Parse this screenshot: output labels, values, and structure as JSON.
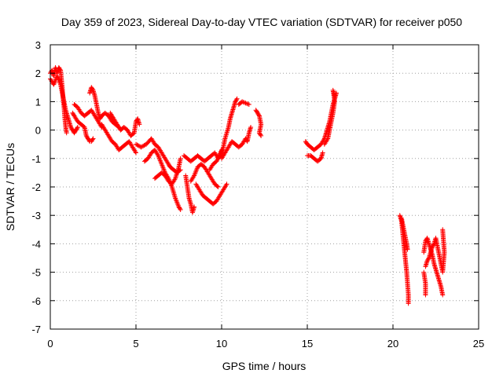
{
  "chart_data": {
    "type": "scatter",
    "title": "Day 359 of 2023, Sidereal Day-to-day VTEC variation (SDTVAR) for receiver p050",
    "xlabel": "GPS time / hours",
    "ylabel": "SDTVAR / TECUs",
    "xlim": [
      0,
      25
    ],
    "ylim": [
      -7,
      3
    ],
    "xticks": [
      "0",
      "5",
      "10",
      "15",
      "20",
      "25"
    ],
    "yticks": [
      "3",
      "2",
      "1",
      "0",
      "-1",
      "-2",
      "-3",
      "-4",
      "-5",
      "-6",
      "-7"
    ],
    "xtick_values": [
      0,
      5,
      10,
      15,
      20,
      25
    ],
    "ytick_values": [
      3,
      2,
      1,
      0,
      -1,
      -2,
      -3,
      -4,
      -5,
      -6,
      -7
    ],
    "grid": true,
    "marker": "plus",
    "color": "#ff0000",
    "series": [
      {
        "name": "SDTVAR",
        "segments": [
          [
            [
              0.0,
              2.0
            ],
            [
              0.1,
              2.1
            ],
            [
              0.2,
              1.9
            ],
            [
              0.3,
              2.2
            ],
            [
              0.4,
              2.0
            ],
            [
              0.5,
              2.2
            ],
            [
              0.6,
              2.1
            ],
            [
              0.65,
              1.8
            ],
            [
              0.7,
              1.5
            ],
            [
              0.75,
              1.1
            ],
            [
              0.8,
              0.8
            ],
            [
              0.85,
              0.4
            ],
            [
              0.9,
              0.1
            ],
            [
              0.95,
              -0.1
            ]
          ],
          [
            [
              0.0,
              1.8
            ],
            [
              0.2,
              1.6
            ],
            [
              0.4,
              1.9
            ],
            [
              0.6,
              1.6
            ],
            [
              0.7,
              1.3
            ],
            [
              0.8,
              1.0
            ],
            [
              0.9,
              0.7
            ],
            [
              1.0,
              0.5
            ],
            [
              1.1,
              0.3
            ],
            [
              1.2,
              0.1
            ],
            [
              1.3,
              0.0
            ],
            [
              1.4,
              -0.1
            ],
            [
              1.5,
              0.0
            ],
            [
              1.6,
              0.1
            ]
          ],
          [
            [
              1.3,
              0.6
            ],
            [
              1.4,
              0.5
            ],
            [
              1.6,
              0.3
            ],
            [
              1.8,
              0.2
            ],
            [
              2.0,
              0.1
            ],
            [
              2.1,
              -0.2
            ],
            [
              2.2,
              -0.3
            ],
            [
              2.3,
              -0.4
            ],
            [
              2.4,
              -0.4
            ],
            [
              2.5,
              -0.3
            ]
          ],
          [
            [
              1.4,
              0.9
            ],
            [
              1.6,
              0.8
            ],
            [
              1.8,
              0.6
            ],
            [
              2.0,
              0.5
            ],
            [
              2.2,
              0.6
            ],
            [
              2.4,
              0.7
            ],
            [
              2.6,
              0.5
            ],
            [
              2.8,
              0.3
            ],
            [
              3.0,
              0.1
            ]
          ],
          [
            [
              2.3,
              1.3
            ],
            [
              2.4,
              1.5
            ],
            [
              2.5,
              1.4
            ],
            [
              2.6,
              1.2
            ],
            [
              2.7,
              0.9
            ],
            [
              2.8,
              0.6
            ],
            [
              2.9,
              0.4
            ],
            [
              3.0,
              0.5
            ],
            [
              3.2,
              0.6
            ],
            [
              3.4,
              0.5
            ],
            [
              3.6,
              0.3
            ],
            [
              3.8,
              0.2
            ],
            [
              4.0,
              0.1
            ]
          ],
          [
            [
              3.0,
              0.2
            ],
            [
              3.2,
              0.0
            ],
            [
              3.4,
              -0.2
            ],
            [
              3.6,
              -0.4
            ],
            [
              3.8,
              -0.5
            ],
            [
              4.0,
              -0.7
            ],
            [
              4.2,
              -0.6
            ],
            [
              4.4,
              -0.5
            ],
            [
              4.6,
              -0.4
            ],
            [
              4.8,
              -0.6
            ],
            [
              5.0,
              -0.8
            ]
          ],
          [
            [
              3.5,
              0.6
            ],
            [
              3.7,
              0.4
            ],
            [
              3.9,
              0.2
            ],
            [
              4.1,
              0.0
            ],
            [
              4.3,
              0.1
            ],
            [
              4.5,
              0.0
            ],
            [
              4.7,
              -0.2
            ],
            [
              4.9,
              -0.1
            ],
            [
              5.0,
              0.3
            ],
            [
              5.1,
              0.4
            ],
            [
              5.2,
              0.2
            ]
          ],
          [
            [
              5.0,
              -0.5
            ],
            [
              5.3,
              -0.6
            ],
            [
              5.6,
              -0.5
            ],
            [
              5.9,
              -0.3
            ],
            [
              6.1,
              -0.5
            ],
            [
              6.3,
              -0.6
            ],
            [
              6.5,
              -0.8
            ],
            [
              6.7,
              -1.0
            ],
            [
              6.9,
              -1.2
            ],
            [
              7.0,
              -1.3
            ],
            [
              7.2,
              -1.4
            ],
            [
              7.4,
              -1.5
            ],
            [
              7.6,
              -1.4
            ]
          ],
          [
            [
              5.5,
              -1.1
            ],
            [
              5.7,
              -1.0
            ],
            [
              5.9,
              -0.8
            ],
            [
              6.1,
              -0.7
            ],
            [
              6.3,
              -0.9
            ],
            [
              6.5,
              -1.2
            ],
            [
              6.7,
              -1.5
            ],
            [
              6.9,
              -1.7
            ],
            [
              7.1,
              -2.0
            ],
            [
              7.3,
              -2.4
            ],
            [
              7.5,
              -2.7
            ],
            [
              7.6,
              -2.8
            ]
          ],
          [
            [
              6.1,
              -1.7
            ],
            [
              6.3,
              -1.6
            ],
            [
              6.5,
              -1.5
            ],
            [
              6.7,
              -1.6
            ],
            [
              6.9,
              -1.8
            ],
            [
              7.1,
              -1.9
            ],
            [
              7.3,
              -1.7
            ],
            [
              7.5,
              -1.3
            ],
            [
              7.6,
              -1.0
            ]
          ],
          [
            [
              7.8,
              -0.9
            ],
            [
              8.0,
              -1.0
            ],
            [
              8.2,
              -1.1
            ],
            [
              8.4,
              -1.0
            ],
            [
              8.6,
              -0.9
            ],
            [
              8.8,
              -1.0
            ],
            [
              9.0,
              -1.1
            ],
            [
              9.2,
              -1.0
            ],
            [
              9.4,
              -0.9
            ],
            [
              9.6,
              -0.8
            ],
            [
              9.8,
              -1.0
            ],
            [
              10.0,
              -0.7
            ]
          ],
          [
            [
              7.9,
              -1.6
            ],
            [
              8.0,
              -2.0
            ],
            [
              8.1,
              -2.4
            ],
            [
              8.2,
              -2.6
            ],
            [
              8.3,
              -2.9
            ],
            [
              8.4,
              -2.7
            ]
          ],
          [
            [
              8.5,
              -1.9
            ],
            [
              8.7,
              -2.1
            ],
            [
              8.9,
              -2.3
            ],
            [
              9.1,
              -2.4
            ],
            [
              9.3,
              -2.5
            ],
            [
              9.5,
              -2.6
            ],
            [
              9.7,
              -2.5
            ],
            [
              9.9,
              -2.3
            ],
            [
              10.1,
              -2.1
            ],
            [
              10.3,
              -1.9
            ]
          ],
          [
            [
              8.2,
              -1.8
            ],
            [
              8.4,
              -1.6
            ],
            [
              8.6,
              -1.3
            ],
            [
              8.8,
              -1.2
            ],
            [
              9.0,
              -1.3
            ],
            [
              9.2,
              -1.5
            ],
            [
              9.4,
              -1.7
            ],
            [
              9.6,
              -1.9
            ],
            [
              9.8,
              -2.0
            ]
          ],
          [
            [
              9.3,
              -1.4
            ],
            [
              9.5,
              -1.2
            ],
            [
              9.7,
              -1.1
            ],
            [
              9.9,
              -0.9
            ],
            [
              10.1,
              -0.6
            ],
            [
              10.2,
              -0.3
            ],
            [
              10.4,
              0.1
            ],
            [
              10.5,
              0.4
            ],
            [
              10.6,
              0.6
            ],
            [
              10.7,
              0.8
            ],
            [
              10.8,
              1.0
            ],
            [
              10.9,
              1.1
            ]
          ],
          [
            [
              10.0,
              -1.0
            ],
            [
              10.2,
              -0.8
            ],
            [
              10.4,
              -0.6
            ],
            [
              10.6,
              -0.4
            ],
            [
              10.8,
              -0.5
            ],
            [
              11.0,
              -0.6
            ],
            [
              11.2,
              -0.5
            ],
            [
              11.4,
              -0.3
            ],
            [
              11.5,
              -0.4
            ],
            [
              11.6,
              -0.1
            ],
            [
              11.7,
              0.1
            ]
          ],
          [
            [
              11.0,
              0.9
            ],
            [
              11.2,
              1.0
            ],
            [
              11.4,
              0.95
            ],
            [
              11.6,
              0.9
            ]
          ],
          [
            [
              12.0,
              0.7
            ],
            [
              12.1,
              0.6
            ],
            [
              12.2,
              0.5
            ],
            [
              12.3,
              0.2
            ],
            [
              12.2,
              -0.1
            ],
            [
              12.3,
              -0.2
            ]
          ],
          [
            [
              14.9,
              -0.4
            ],
            [
              15.0,
              -0.5
            ],
            [
              15.2,
              -0.6
            ],
            [
              15.4,
              -0.7
            ],
            [
              15.6,
              -0.6
            ],
            [
              15.8,
              -0.5
            ],
            [
              16.0,
              -0.3
            ],
            [
              16.1,
              -0.1
            ],
            [
              16.2,
              0.1
            ],
            [
              16.3,
              0.3
            ],
            [
              16.4,
              0.6
            ],
            [
              16.5,
              0.9
            ],
            [
              16.6,
              1.1
            ],
            [
              16.7,
              1.3
            ]
          ],
          [
            [
              15.0,
              -0.9
            ],
            [
              15.2,
              -0.9
            ],
            [
              15.4,
              -1.0
            ],
            [
              15.6,
              -1.1
            ],
            [
              15.8,
              -1.0
            ],
            [
              15.9,
              -0.8
            ]
          ],
          [
            [
              16.0,
              -0.5
            ],
            [
              16.2,
              -0.3
            ],
            [
              16.3,
              0.0
            ],
            [
              16.4,
              0.3
            ],
            [
              16.5,
              0.6
            ],
            [
              16.6,
              1.0
            ],
            [
              16.5,
              1.4
            ],
            [
              16.6,
              1.2
            ]
          ],
          [
            [
              20.4,
              -3.0
            ],
            [
              20.5,
              -3.2
            ],
            [
              20.55,
              -3.5
            ],
            [
              20.6,
              -3.8
            ],
            [
              20.65,
              -4.1
            ],
            [
              20.7,
              -4.4
            ],
            [
              20.75,
              -4.7
            ],
            [
              20.8,
              -5.0
            ],
            [
              20.85,
              -5.4
            ],
            [
              20.9,
              -5.8
            ],
            [
              20.9,
              -6.1
            ]
          ],
          [
            [
              20.5,
              -3.1
            ],
            [
              20.6,
              -3.4
            ],
            [
              20.7,
              -3.7
            ],
            [
              20.8,
              -4.0
            ],
            [
              20.85,
              -4.2
            ]
          ],
          [
            [
              21.8,
              -4.3
            ],
            [
              21.9,
              -3.9
            ],
            [
              22.0,
              -3.8
            ],
            [
              22.1,
              -4.0
            ],
            [
              22.2,
              -4.2
            ],
            [
              22.3,
              -4.4
            ],
            [
              22.4,
              -4.7
            ],
            [
              22.5,
              -4.9
            ],
            [
              22.6,
              -5.1
            ],
            [
              22.7,
              -5.3
            ],
            [
              22.8,
              -5.5
            ],
            [
              22.9,
              -5.8
            ]
          ],
          [
            [
              21.9,
              -4.8
            ],
            [
              22.0,
              -4.6
            ],
            [
              22.1,
              -4.5
            ],
            [
              22.2,
              -4.3
            ],
            [
              22.3,
              -4.1
            ],
            [
              22.4,
              -4.0
            ],
            [
              22.5,
              -3.8
            ],
            [
              22.6,
              -4.1
            ],
            [
              22.7,
              -4.4
            ],
            [
              22.8,
              -4.7
            ],
            [
              22.9,
              -5.0
            ],
            [
              23.0,
              -4.3
            ],
            [
              22.9,
              -3.5
            ]
          ],
          [
            [
              21.8,
              -5.0
            ],
            [
              21.9,
              -5.4
            ],
            [
              21.9,
              -5.8
            ]
          ]
        ]
      }
    ]
  }
}
